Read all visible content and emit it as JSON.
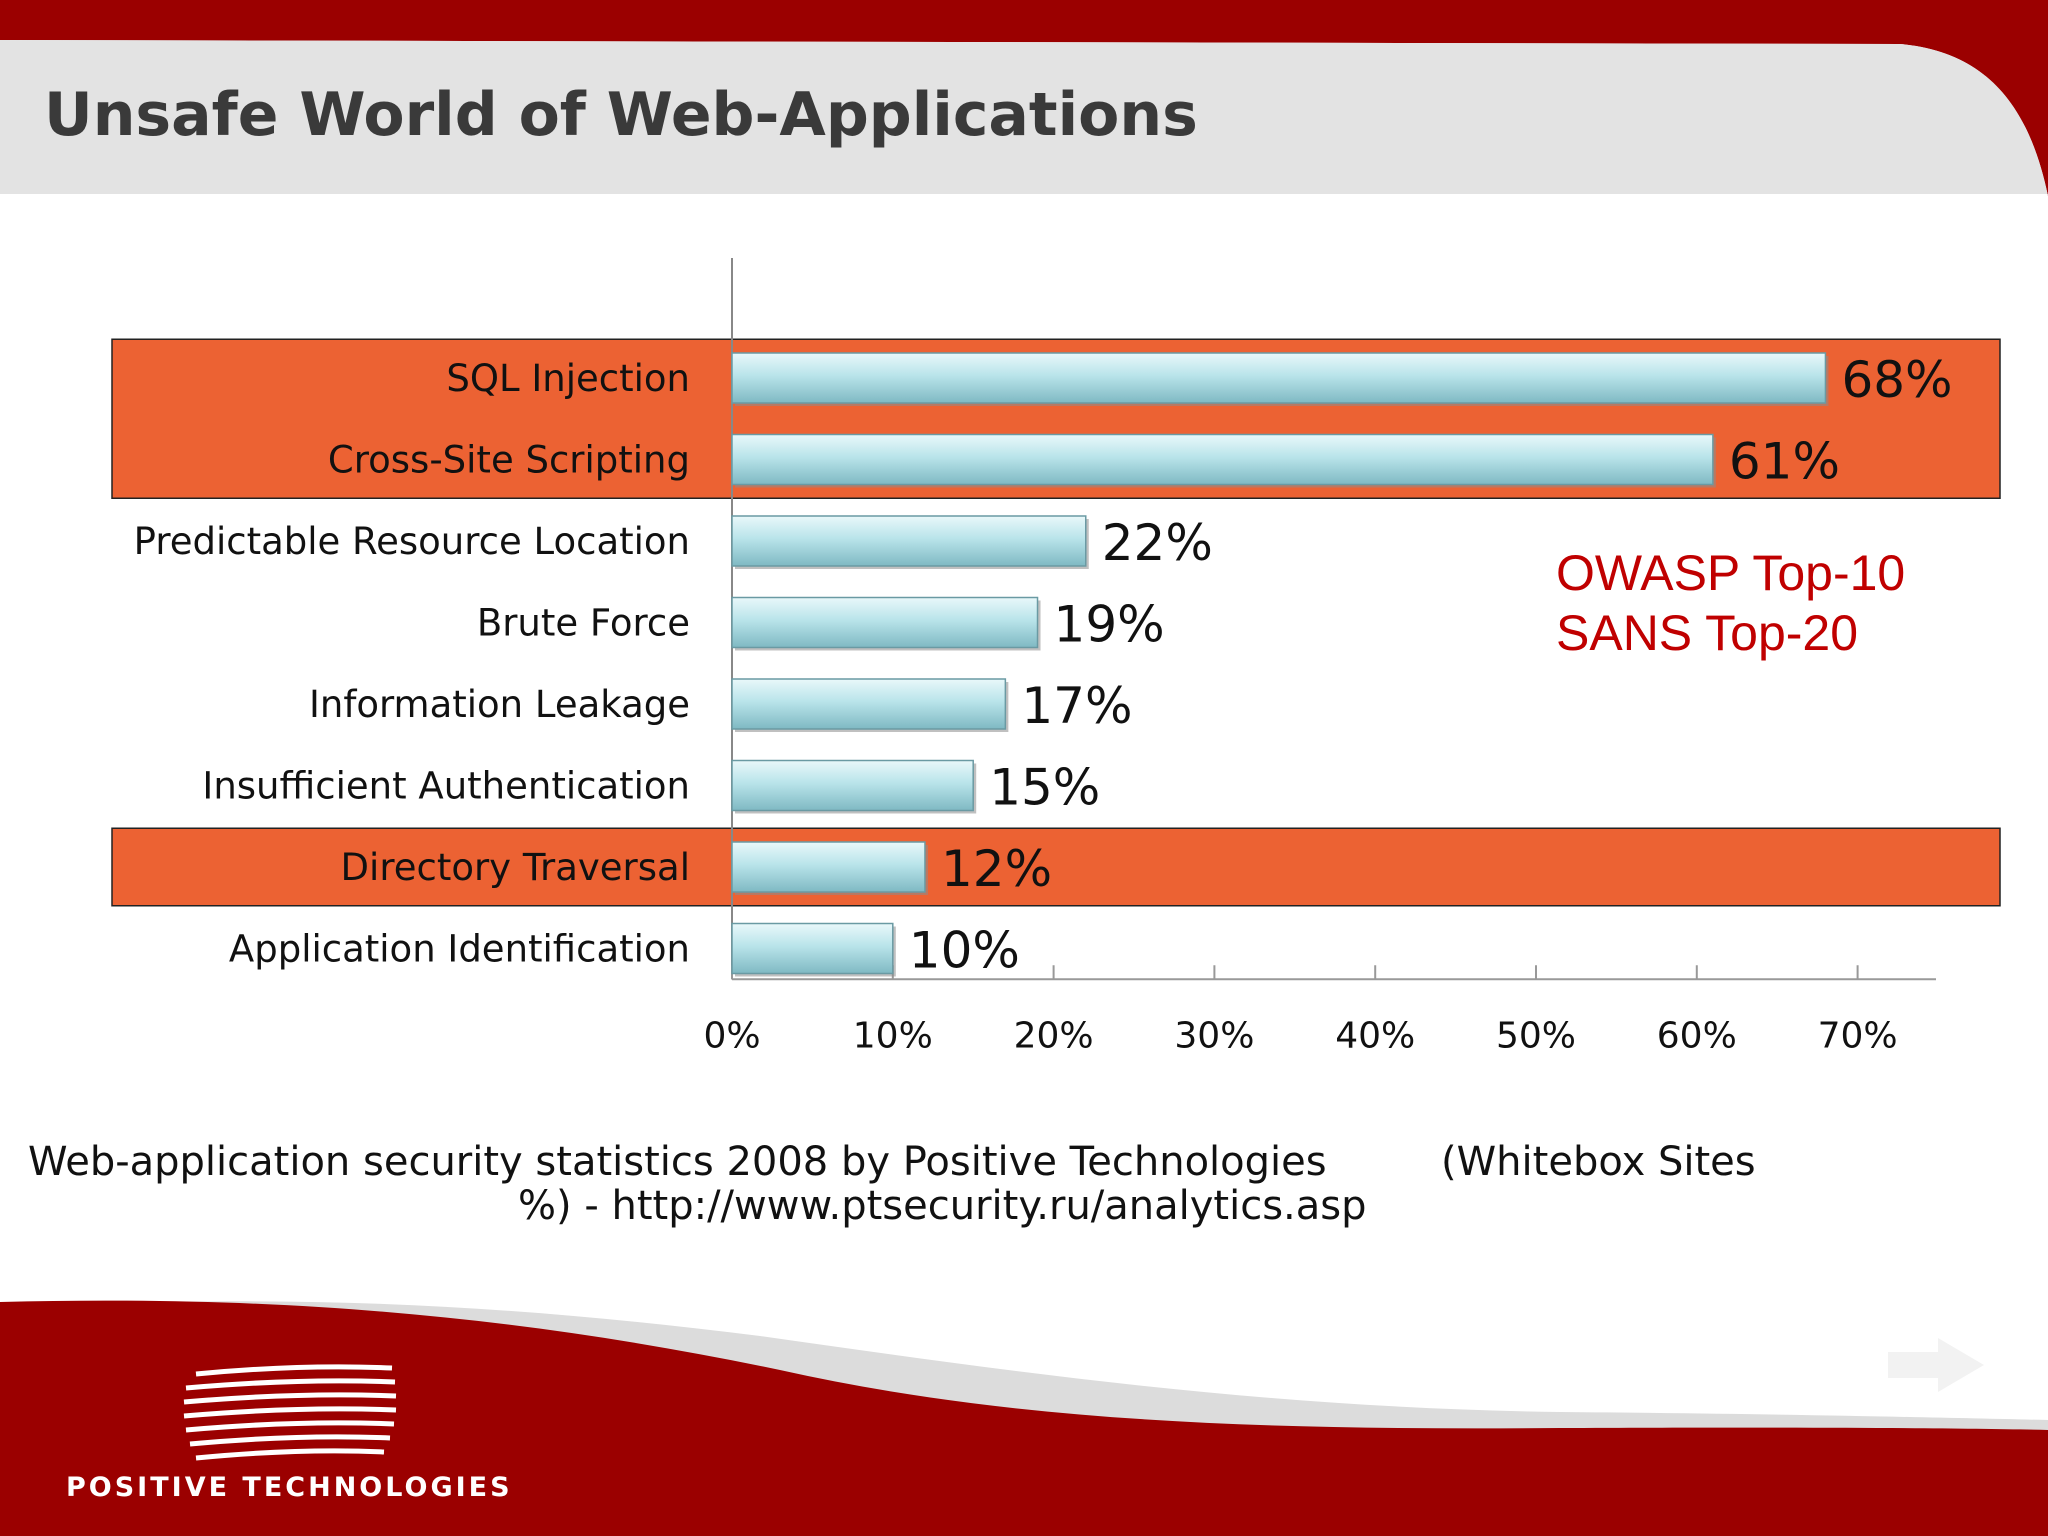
{
  "slide": {
    "title": "Unsafe World of Web-Applications",
    "note_lines": [
      "OWASP Top-10",
      "SANS Top-20"
    ],
    "caption_line1": "Web-application security statistics 2008 by Positive Technologies         (Whitebox Sites",
    "caption_line2": "%) - http://www.ptsecurity.ru/analytics.asp",
    "brand": "POSITIVE TECHNOLOGIES"
  },
  "colors": {
    "header_red": "#9b0000",
    "highlight": "#ec6233",
    "bar_fill": "#b9e4ea",
    "note_red": "#c00000"
  },
  "chart_data": {
    "type": "bar",
    "orientation": "horizontal",
    "title": "",
    "xlabel": "",
    "ylabel": "",
    "categories": [
      "SQL Injection",
      "Cross-Site Scripting",
      "Predictable Resource Location",
      "Brute Force",
      "Information Leakage",
      "Insufficient Authentication",
      "Directory Traversal",
      "Application Identification"
    ],
    "values": [
      68,
      61,
      22,
      19,
      17,
      15,
      12,
      10
    ],
    "value_labels": [
      "68%",
      "61%",
      "22%",
      "19%",
      "17%",
      "15%",
      "12%",
      "10%"
    ],
    "xlim": [
      0,
      75
    ],
    "x_ticks": [
      0,
      10,
      20,
      30,
      40,
      50,
      60,
      70
    ],
    "x_tick_labels": [
      "0%",
      "10%",
      "20%",
      "30%",
      "40%",
      "50%",
      "60%",
      "70%"
    ],
    "highlighted_categories": [
      "SQL Injection",
      "Cross-Site Scripting",
      "Directory Traversal"
    ],
    "grid": false,
    "legend": "none"
  }
}
